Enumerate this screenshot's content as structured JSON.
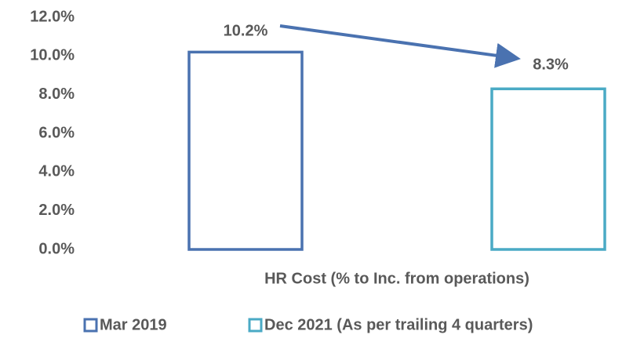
{
  "chart_data": {
    "type": "bar",
    "categories": [
      "HR Cost (% to Inc. from operations)"
    ],
    "series": [
      {
        "name": "Mar 2019",
        "color": "#4a72b0",
        "values": [
          10.2
        ],
        "value_labels": [
          "10.2%"
        ]
      },
      {
        "name": "Dec 2021 (As per trailing 4 quarters)",
        "color": "#4aaac5",
        "values": [
          8.3
        ],
        "value_labels": [
          "8.3%"
        ]
      }
    ],
    "ylim": [
      0,
      12
    ],
    "yticks": [
      {
        "value": 0,
        "label": "0.0%"
      },
      {
        "value": 2,
        "label": "2.0%"
      },
      {
        "value": 4,
        "label": "4.0%"
      },
      {
        "value": 6,
        "label": "6.0%"
      },
      {
        "value": 8,
        "label": "8.0%"
      },
      {
        "value": 10,
        "label": "10.0%"
      },
      {
        "value": 12,
        "label": "12.0%"
      }
    ],
    "grid": false,
    "legend": "bottom"
  }
}
